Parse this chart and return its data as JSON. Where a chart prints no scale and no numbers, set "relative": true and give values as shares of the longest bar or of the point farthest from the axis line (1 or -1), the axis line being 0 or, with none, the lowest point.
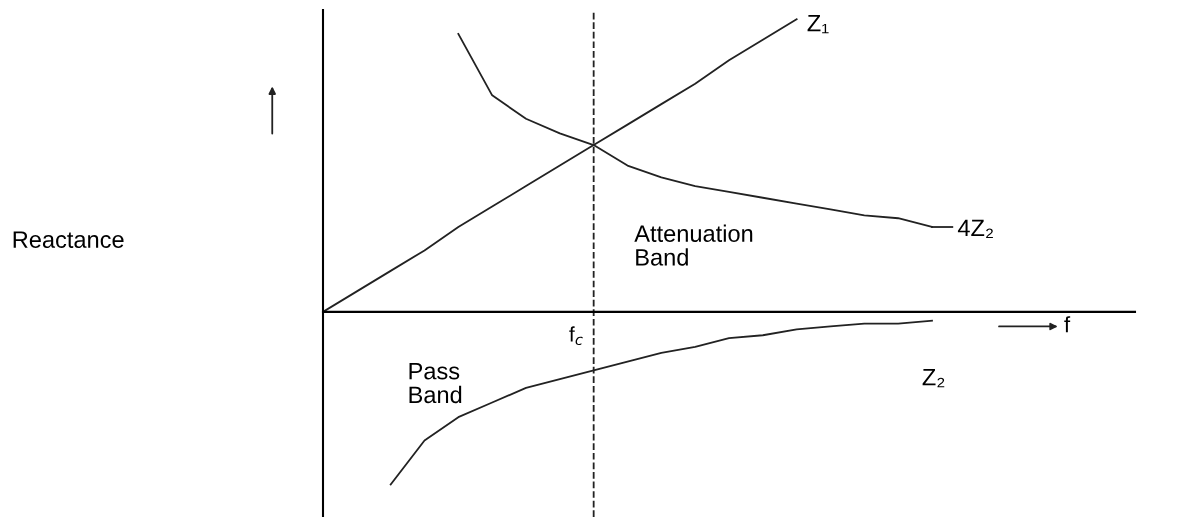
{
  "chart_data": {
    "type": "line",
    "relative": true,
    "xlabel": "f",
    "categories": [
      null,
      null,
      null,
      null,
      null,
      null,
      null,
      null,
      null,
      null,
      null,
      null,
      null,
      null,
      null,
      null,
      null,
      null,
      null,
      null,
      null,
      null,
      null,
      null,
      null
    ],
    "series": [
      {
        "name": "Z₁",
        "color": "#222222",
        "values": [
          0,
          0.07,
          0.14,
          0.21,
          0.29,
          0.36,
          0.43,
          0.5,
          0.57,
          0.64,
          0.71,
          0.78,
          0.86,
          0.93,
          1.0,
          null,
          null,
          null,
          null,
          null,
          null,
          null,
          null,
          null,
          null
        ]
      },
      {
        "name": "4Z₂",
        "color": "#222222",
        "values": [
          null,
          null,
          null,
          null,
          0.95,
          0.74,
          0.66,
          0.61,
          0.57,
          0.5,
          0.46,
          0.43,
          0.41,
          0.39,
          0.37,
          0.35,
          0.33,
          0.32,
          0.29,
          null,
          null,
          null,
          null,
          null,
          null
        ]
      },
      {
        "name": "Z₂",
        "color": "#222222",
        "values": [
          null,
          null,
          -0.59,
          -0.44,
          -0.36,
          -0.31,
          -0.26,
          -0.23,
          -0.2,
          -0.17,
          -0.14,
          -0.12,
          -0.09,
          -0.08,
          -0.06,
          -0.05,
          -0.04,
          -0.04,
          -0.03,
          null,
          null,
          null,
          null,
          null,
          null
        ]
      }
    ],
    "annotations": [
      "Reactance",
      "Attenuation Band",
      "Pass Band",
      "f$_{c}$"
    ],
    "marker": "none",
    "line_style": "solid"
  }
}
